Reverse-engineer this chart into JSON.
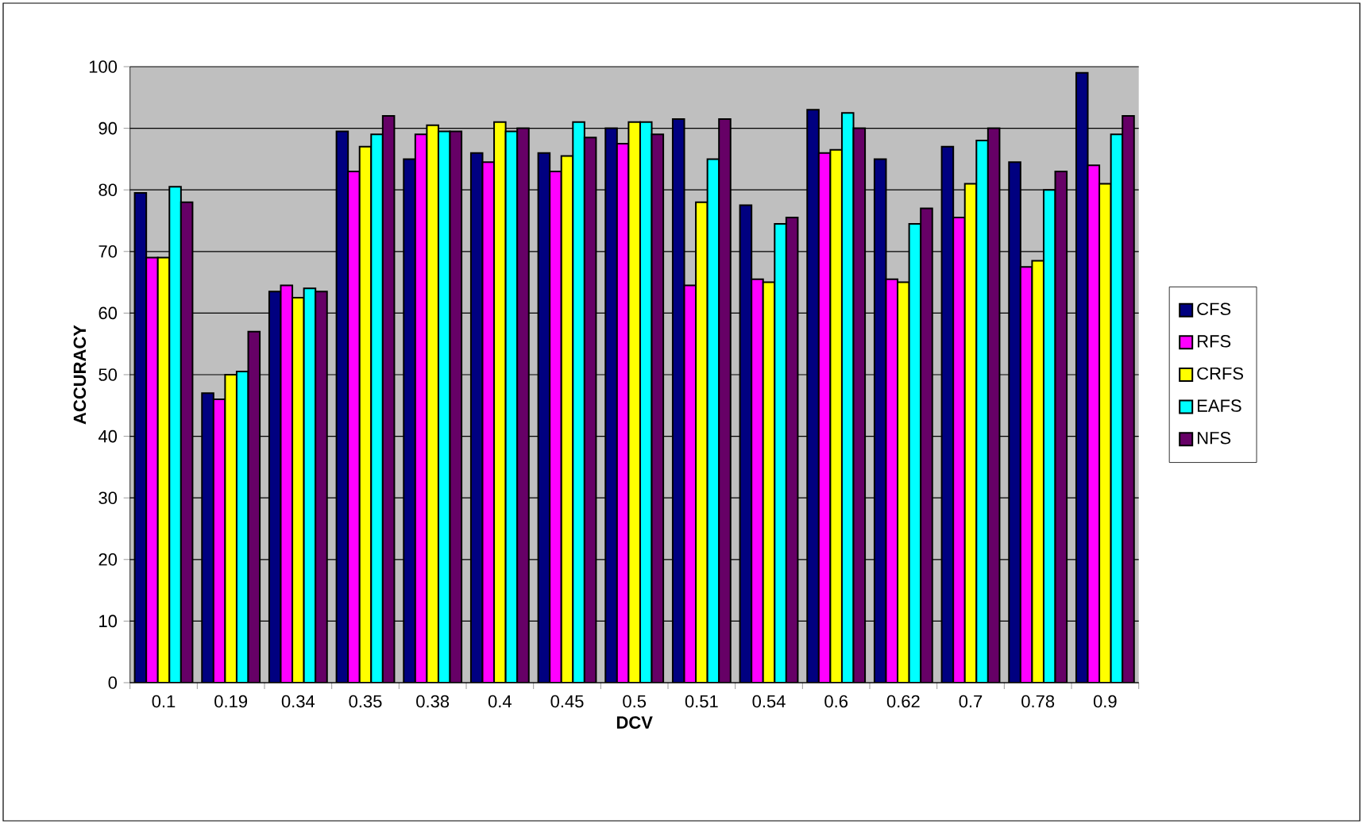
{
  "chart_data": {
    "type": "bar",
    "xlabel": "DCV",
    "ylabel": "ACCURACY",
    "categories": [
      "0.1",
      "0.19",
      "0.34",
      "0.35",
      "0.38",
      "0.4",
      "0.45",
      "0.5",
      "0.51",
      "0.54",
      "0.6",
      "0.62",
      "0.7",
      "0.78",
      "0.9"
    ],
    "series": [
      {
        "name": "CFS",
        "color": "#000080",
        "values": [
          79.5,
          47,
          63.5,
          89.5,
          85,
          86,
          86,
          90,
          91.5,
          77.5,
          93,
          85,
          87,
          84.5,
          99
        ]
      },
      {
        "name": "RFS",
        "color": "#ff00ff",
        "values": [
          69,
          46,
          64.5,
          83,
          89,
          84.5,
          83,
          87.5,
          64.5,
          65.5,
          86,
          65.5,
          75.5,
          67.5,
          84
        ]
      },
      {
        "name": "CRFS",
        "color": "#ffff00",
        "values": [
          69,
          50,
          62.5,
          87,
          90.5,
          91,
          85.5,
          91,
          78,
          65,
          86.5,
          65,
          81,
          68.5,
          81
        ]
      },
      {
        "name": "EAFS",
        "color": "#00ffff",
        "values": [
          80.5,
          50.5,
          64,
          89,
          89.5,
          89.5,
          91,
          91,
          85,
          74.5,
          92.5,
          74.5,
          88,
          80,
          89
        ]
      },
      {
        "name": "NFS",
        "color": "#660066",
        "values": [
          78,
          57,
          63.5,
          92,
          89.5,
          90,
          88.5,
          89,
          91.5,
          75.5,
          90,
          77,
          90,
          83,
          92
        ]
      }
    ],
    "ylim": [
      0,
      100
    ],
    "yticks": [
      0,
      10,
      20,
      30,
      40,
      50,
      60,
      70,
      80,
      90,
      100
    ],
    "grid": "y",
    "legend": "right"
  }
}
